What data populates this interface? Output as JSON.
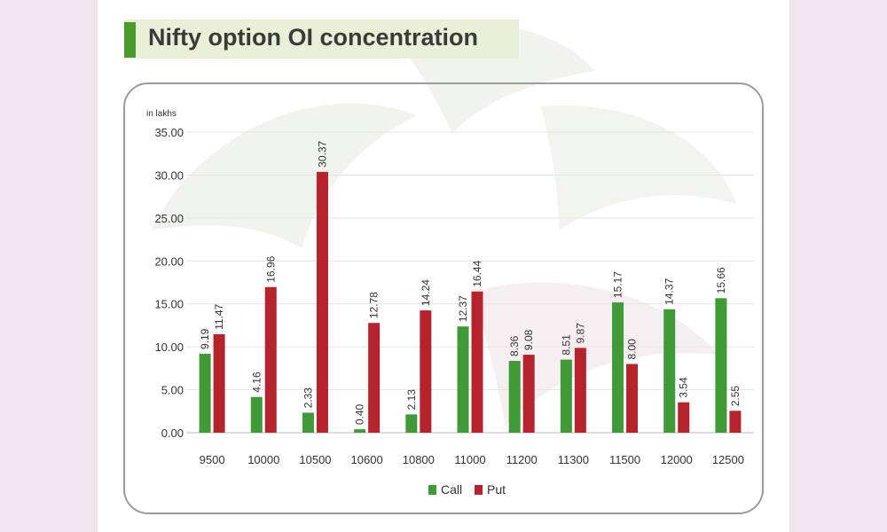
{
  "title": "Nifty option OI concentration",
  "colors": {
    "call": "#3f9a37",
    "put": "#b5232d",
    "title_bar": "#4a9a2c"
  },
  "chart_data": {
    "type": "bar",
    "unit_label": "in lakhs",
    "categories": [
      "9500",
      "10000",
      "10500",
      "10600",
      "10800",
      "11000",
      "11200",
      "11300",
      "11500",
      "12000",
      "12500"
    ],
    "series": [
      {
        "name": "Call",
        "values": [
          9.19,
          4.16,
          2.33,
          0.4,
          2.13,
          12.37,
          8.36,
          8.51,
          15.17,
          14.37,
          15.66
        ],
        "labels": [
          "9.19",
          "4.16",
          "2.33",
          "0.40",
          "2.13",
          "12.37",
          "8.36",
          "8.51",
          "15.17",
          "14.37",
          "15.66"
        ]
      },
      {
        "name": "Put",
        "values": [
          11.47,
          16.96,
          30.37,
          12.78,
          14.24,
          16.44,
          9.08,
          9.87,
          8.0,
          3.54,
          2.55
        ],
        "labels": [
          "11.47",
          "16.96",
          "30.37",
          "12.78",
          "14.24",
          "16.44",
          "9.08",
          "9.87",
          "8.00",
          "3.54",
          "2.55"
        ]
      }
    ],
    "ylim": [
      0,
      35
    ],
    "yticks": [
      "0.00",
      "5.00",
      "10.00",
      "15.00",
      "20.00",
      "25.00",
      "30.00",
      "35.00"
    ],
    "grid": true,
    "legend": "bottom"
  }
}
